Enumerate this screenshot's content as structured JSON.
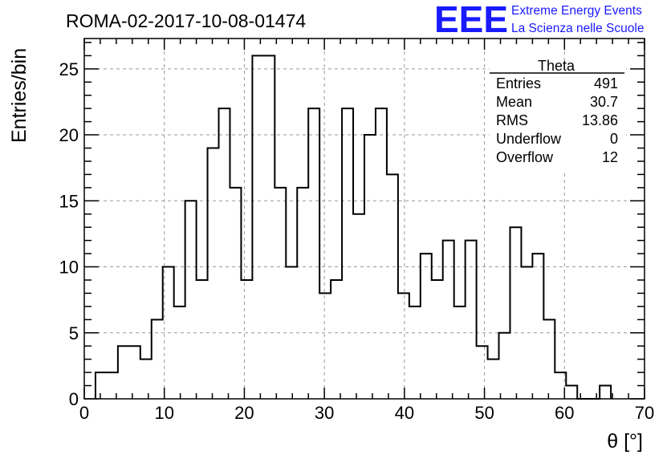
{
  "header": {
    "run_title": "ROMA-02-2017-10-08-01474",
    "logo_text": "EEE",
    "logo_line1": "Extreme Energy Events",
    "logo_line2": "La Scienza nelle Scuole",
    "brand_color": "#1a1aff"
  },
  "stats_box": {
    "title": "Theta",
    "rows": [
      {
        "label": "Entries",
        "value": "491"
      },
      {
        "label": "Mean",
        "value": "30.7"
      },
      {
        "label": "RMS",
        "value": "13.86"
      },
      {
        "label": "Underflow",
        "value": "0"
      },
      {
        "label": "Overflow",
        "value": "12"
      }
    ]
  },
  "chart_data": {
    "type": "bar",
    "style": "step-histogram",
    "xlabel": "θ [°]",
    "ylabel": "Entries/bin",
    "xlim": [
      0,
      70
    ],
    "ylim": [
      0,
      27.3
    ],
    "x_ticks": [
      0,
      10,
      20,
      30,
      40,
      50,
      60,
      70
    ],
    "y_ticks": [
      0,
      5,
      10,
      15,
      20,
      25
    ],
    "grid": true,
    "bin_width": 1.4,
    "x_start": 1.4,
    "values": [
      2,
      2,
      4,
      4,
      3,
      6,
      10,
      7,
      15,
      9,
      19,
      22,
      16,
      9,
      26,
      26,
      16,
      10,
      16,
      22,
      8,
      9,
      22,
      14,
      20,
      22,
      17,
      8,
      7,
      11,
      9,
      12,
      7,
      12,
      4,
      3,
      5,
      13,
      10,
      11,
      6,
      2,
      1,
      0,
      0,
      1
    ]
  }
}
